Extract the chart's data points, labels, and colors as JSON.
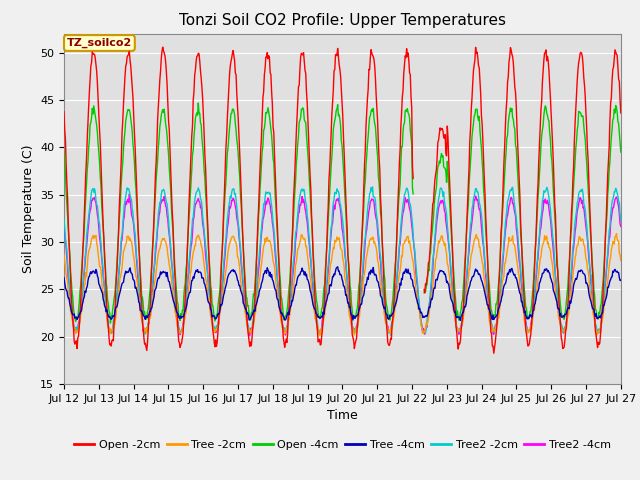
{
  "title": "Tonzi Soil CO2 Profile: Upper Temperatures",
  "ylabel": "Soil Temperature (C)",
  "xlabel": "Time",
  "annotation": "TZ_soilco2",
  "ylim": [
    15,
    52
  ],
  "yticks": [
    15,
    20,
    25,
    30,
    35,
    40,
    45,
    50
  ],
  "legend_labels": [
    "Open -2cm",
    "Tree -2cm",
    "Open -4cm",
    "Tree -4cm",
    "Tree2 -2cm",
    "Tree2 -4cm"
  ],
  "legend_colors": [
    "#ff0000",
    "#ff9900",
    "#00cc00",
    "#0000bb",
    "#00cccc",
    "#ff00ff"
  ],
  "xtick_labels": [
    "Jul 12",
    "Jul 13",
    "Jul 14",
    "Jul 15",
    "Jul 16",
    "Jul 17",
    "Jul 18",
    "Jul 19",
    "Jul 20",
    "Jul 21",
    "Jul 22",
    "Jul 23",
    "Jul 24",
    "Jul 25",
    "Jul 26",
    "Jul 27",
    "Jul 27"
  ],
  "days": 16,
  "pts_per_day": 48,
  "plot_bg": "#e0e0e0",
  "fig_bg": "#f0f0f0",
  "title_fontsize": 11,
  "axis_label_fontsize": 9,
  "tick_fontsize": 8,
  "legend_fontsize": 8
}
